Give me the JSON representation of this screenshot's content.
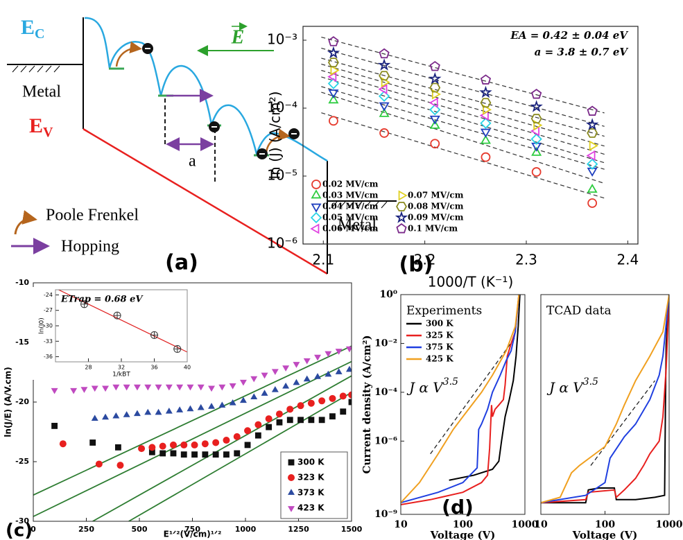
{
  "diagram": {
    "ec": "E",
    "ec_sub": "C",
    "ev": "E",
    "ev_sub": "V",
    "field": "E",
    "metal_left": "Metal",
    "metal_right": "Metal",
    "a": "a",
    "pf": "Poole Frenkel",
    "hop": "Hopping",
    "panel": "(a)"
  },
  "chart_data": [
    {
      "type": "scatter",
      "panel": "(b)",
      "log_scale": "y",
      "xlim": [
        2.08,
        2.41
      ],
      "ylim": [
        1e-06,
        0.0016
      ],
      "xticks": [
        2.1,
        2.2,
        2.3,
        2.4
      ],
      "yticks": [
        {
          "value": 1e-06,
          "label": "10⁻⁶"
        },
        {
          "value": 1e-05,
          "label": "10⁻⁵"
        },
        {
          "value": 0.0001,
          "label": "10⁻⁴"
        },
        {
          "value": 0.001,
          "label": "10⁻³"
        }
      ],
      "xlabel": "1000/T (K⁻¹)",
      "ylabel": "ln (J) (A/cm²)",
      "annotations": [
        "EA = 0.42 ± 0.04 eV",
        "a = 3.8 ± 0.7 eV"
      ],
      "fit": "dashed",
      "open_markers": true,
      "legend": "lower left",
      "legend_columns": 2,
      "x": [
        2.11,
        2.16,
        2.21,
        2.26,
        2.31,
        2.365
      ],
      "series": [
        {
          "name": "0.02 MV/cm",
          "color": "#e63b2e",
          "marker": "circle",
          "values": [
            6.5e-05,
            4.3e-05,
            3e-05,
            1.9e-05,
            1.15e-05,
            4e-06
          ]
        },
        {
          "name": "0.03 MV/cm",
          "color": "#2ecc40",
          "marker": "triangle-up",
          "values": [
            0.00013,
            8.2e-05,
            5.5e-05,
            3.3e-05,
            2.2e-05,
            6.3e-06
          ]
        },
        {
          "name": "0.04 MV/cm",
          "color": "#1f3fbf",
          "marker": "triangle-down",
          "values": [
            0.00017,
            0.00011,
            7e-05,
            4.5e-05,
            2.8e-05,
            1.2e-05
          ]
        },
        {
          "name": "0.05 MV/cm",
          "color": "#29d3e6",
          "marker": "diamond",
          "values": [
            0.00023,
            0.00015,
            9.5e-05,
            6e-05,
            3.5e-05,
            1.5e-05
          ]
        },
        {
          "name": "0.06 MV/cm",
          "color": "#e040e0",
          "marker": "triangle-left",
          "values": [
            0.00029,
            0.00019,
            0.00012,
            7.8e-05,
            4.6e-05,
            2e-05
          ]
        },
        {
          "name": "0.07 MV/cm",
          "color": "#e0d020",
          "marker": "triangle-right",
          "values": [
            0.00036,
            0.00024,
            0.00016,
            9.5e-05,
            5.6e-05,
            2.8e-05
          ]
        },
        {
          "name": "0.08 MV/cm",
          "color": "#8a8a1f",
          "marker": "hexagon",
          "values": [
            0.00047,
            0.0003,
            0.0002,
            0.00012,
            7e-05,
            4.3e-05
          ]
        },
        {
          "name": "0.09 MV/cm",
          "color": "#1a237e",
          "marker": "star",
          "values": [
            0.00065,
            0.00043,
            0.00027,
            0.00017,
            0.000105,
            5.7e-05
          ]
        },
        {
          "name": "0.1 MV/cm",
          "color": "#7b2a8a",
          "marker": "pentagon",
          "values": [
            0.00095,
            0.00063,
            0.00041,
            0.00026,
            0.00016,
            9e-05
          ]
        }
      ]
    },
    {
      "type": "scatter",
      "panel": "(c)",
      "xlim": [
        0,
        1500
      ],
      "ylim": [
        -30,
        -10
      ],
      "xticks": [
        0,
        250,
        500,
        750,
        1000,
        1250,
        1500
      ],
      "yticks": [
        -30,
        -25,
        -20,
        -15,
        -10
      ],
      "xlabel": "E¹ᐟ²(V/cm)¹ᐟ²",
      "ylabel": "ln(J/E) (A/V.cm)",
      "legend": "lower right",
      "series": [
        {
          "name": "300 K",
          "color": "#111111",
          "marker": "square",
          "x": [
            100,
            280,
            400,
            560,
            610,
            660,
            710,
            760,
            810,
            860,
            910,
            960,
            1010,
            1060,
            1110,
            1160,
            1210,
            1260,
            1310,
            1360,
            1410,
            1460,
            1500
          ],
          "values": [
            -22,
            -23.4,
            -23.8,
            -24.2,
            -24.3,
            -24.3,
            -24.4,
            -24.4,
            -24.4,
            -24.4,
            -24.4,
            -24.3,
            -23.6,
            -22.8,
            -22.1,
            -21.7,
            -21.5,
            -21.5,
            -21.5,
            -21.5,
            -21.2,
            -20.8,
            -20
          ]
        },
        {
          "name": "323 K",
          "color": "#e8201f",
          "marker": "circle",
          "x": [
            140,
            310,
            410,
            510,
            560,
            610,
            660,
            710,
            760,
            810,
            860,
            910,
            960,
            1010,
            1060,
            1110,
            1160,
            1210,
            1260,
            1310,
            1360,
            1410,
            1460,
            1500
          ],
          "values": [
            -23.5,
            -25.2,
            -25.3,
            -23.9,
            -23.8,
            -23.7,
            -23.6,
            -23.6,
            -23.6,
            -23.5,
            -23.4,
            -23.2,
            -22.9,
            -22.4,
            -21.9,
            -21.4,
            -21,
            -20.6,
            -20.3,
            -20.1,
            -19.9,
            -19.7,
            -19.5,
            -19.4
          ]
        },
        {
          "name": "373 K",
          "color": "#2b4aa0",
          "marker": "triangle-up",
          "x": [
            290,
            340,
            390,
            440,
            490,
            540,
            590,
            640,
            690,
            740,
            790,
            840,
            890,
            940,
            990,
            1040,
            1090,
            1140,
            1190,
            1240,
            1290,
            1340,
            1390,
            1440,
            1490
          ],
          "values": [
            -21.4,
            -21.3,
            -21.2,
            -21.1,
            -21,
            -20.9,
            -20.9,
            -20.8,
            -20.7,
            -20.6,
            -20.5,
            -20.4,
            -20.3,
            -20.1,
            -19.9,
            -19.6,
            -19.3,
            -19,
            -18.7,
            -18.4,
            -18.1,
            -17.9,
            -17.7,
            -17.5,
            -17.3
          ]
        },
        {
          "name": "423 K",
          "color": "#c04ac0",
          "marker": "triangle-down",
          "x": [
            0,
            100,
            190,
            240,
            290,
            340,
            390,
            440,
            490,
            540,
            590,
            640,
            690,
            740,
            790,
            840,
            890,
            940,
            990,
            1040,
            1090,
            1140,
            1190,
            1240,
            1290,
            1340,
            1390,
            1440,
            1490
          ],
          "values": [
            -17.9,
            -19,
            -19,
            -18.9,
            -18.8,
            -18.8,
            -18.7,
            -18.7,
            -18.7,
            -18.7,
            -18.7,
            -18.7,
            -18.7,
            -18.7,
            -18.7,
            -18.8,
            -18.7,
            -18.6,
            -18.3,
            -18,
            -17.7,
            -17.4,
            -17.1,
            -16.8,
            -16.5,
            -16.2,
            -15.9,
            -15.7,
            -15.5
          ]
        }
      ],
      "fits": [
        {
          "color": "#2e7d32",
          "x": [
            0,
            1500
          ],
          "values": [
            -27.8,
            -15.3
          ]
        },
        {
          "color": "#2e7d32",
          "x": [
            0,
            1500
          ],
          "values": [
            -29.6,
            -16.6
          ]
        },
        {
          "color": "#2e7d32",
          "x": [
            280,
            1500
          ],
          "values": [
            -30,
            -17.8
          ]
        },
        {
          "color": "#2e7d32",
          "x": [
            450,
            1500
          ],
          "values": [
            -30,
            -19.2
          ]
        }
      ]
    },
    {
      "type": "scatter",
      "title": "ETrap = 0.68 eV",
      "xlim": [
        24,
        40
      ],
      "ylim": [
        -37,
        -23
      ],
      "xticks": [
        28,
        32,
        36,
        40
      ],
      "yticks": [
        -24,
        -27,
        -30,
        -33,
        -36
      ],
      "xlabel": "1/kBT",
      "ylabel": "ln(J0)",
      "fit": "solid",
      "fit_color": "#e02020",
      "series": [
        {
          "color": "#333333",
          "marker": "circle-plus",
          "x": [
            27.5,
            31.5,
            36,
            38.8
          ],
          "values": [
            -25.8,
            -28,
            -31.8,
            -34.5
          ]
        }
      ]
    },
    {
      "type": "line",
      "panel": "(d)",
      "log_scale": "xy",
      "xlim": [
        10,
        1000
      ],
      "ylim": [
        1e-09,
        1
      ],
      "xticks": [
        10,
        100,
        1000
      ],
      "yticks": [
        {
          "value": 1e-09,
          "label": "10⁻⁹"
        },
        {
          "value": 1e-06,
          "label": "10⁻⁶"
        },
        {
          "value": 0.0001,
          "label": "10⁻⁴"
        },
        {
          "value": 0.01,
          "label": "10⁻²"
        },
        {
          "value": 1,
          "label": "10⁰"
        }
      ],
      "xlabel": "Voltage (V)",
      "ylabel": "Current density (A/cm²)",
      "title": "Experiments",
      "formula": "J α V",
      "formula_exp": "3.5",
      "legend": "upper left",
      "series": [
        {
          "name": "300 K",
          "color": "#000000",
          "x": [
            60,
            150,
            300,
            380,
            420,
            480,
            560,
            650,
            720,
            780,
            830
          ],
          "values": [
            2.5e-08,
            4e-08,
            7e-08,
            1.5e-07,
            1e-06,
            1e-05,
            5e-05,
            0.0003,
            0.003,
            0.05,
            1
          ]
        },
        {
          "name": "325 K",
          "color": "#e8201f",
          "x": [
            10,
            30,
            100,
            200,
            250,
            270,
            290,
            300,
            330,
            380,
            450,
            480,
            520,
            600,
            700,
            800
          ],
          "values": [
            2.5e-09,
            4e-09,
            8e-09,
            2e-08,
            4e-08,
            5e-07,
            3e-05,
            1e-05,
            2e-05,
            3e-05,
            5e-05,
            0.0002,
            0.003,
            0.01,
            0.03,
            1
          ]
        },
        {
          "name": "375 K",
          "color": "#1f3fe0",
          "x": [
            10,
            40,
            100,
            170,
            180,
            200,
            250,
            300,
            400,
            500,
            600,
            700,
            800
          ],
          "values": [
            3e-09,
            8e-09,
            2e-08,
            8e-08,
            3e-06,
            5e-06,
            2e-05,
            0.0001,
            0.0005,
            0.002,
            0.005,
            0.03,
            1
          ]
        },
        {
          "name": "425 K",
          "color": "#f0a020",
          "x": [
            10,
            20,
            40,
            70,
            100,
            200,
            300,
            500,
            700,
            800
          ],
          "values": [
            3e-09,
            2e-08,
            3e-07,
            3e-06,
            1e-05,
            0.0001,
            0.0005,
            0.005,
            0.05,
            1
          ]
        }
      ],
      "fits": [
        {
          "color": "#222222",
          "dashed": true,
          "x": [
            30,
            700
          ],
          "values": [
            3e-07,
            0.018
          ]
        }
      ]
    },
    {
      "type": "line",
      "log_scale": "xy",
      "xlim": [
        10,
        1000
      ],
      "ylim": [
        1e-09,
        1
      ],
      "xticks": [
        10,
        100,
        1000
      ],
      "xlabel": "Voltage (V)",
      "title": "TCAD data",
      "formula": "J α V",
      "formula_exp": "3.5",
      "series": [
        {
          "color": "#000000",
          "x": [
            10,
            40,
            50,
            55,
            80,
            140,
            150,
            300,
            600,
            850,
            880,
            900,
            1000
          ],
          "values": [
            3e-09,
            3e-09,
            3e-09,
            1e-08,
            1.2e-08,
            1.2e-08,
            4e-09,
            4e-09,
            5e-09,
            6e-09,
            0.0001,
            0.01,
            1
          ]
        },
        {
          "color": "#e8201f",
          "x": [
            10,
            50,
            55,
            140,
            150,
            200,
            300,
            400,
            500,
            700,
            800,
            900,
            1000
          ],
          "values": [
            3e-09,
            4e-09,
            8e-09,
            1e-08,
            5e-09,
            1e-08,
            3e-08,
            1e-07,
            3e-07,
            1e-06,
            1e-05,
            0.001,
            1
          ]
        },
        {
          "color": "#1f3fe0",
          "x": [
            10,
            50,
            100,
            120,
            200,
            300,
            500,
            700,
            800,
            1000
          ],
          "values": [
            3e-09,
            6e-09,
            2e-08,
            2e-07,
            1.5e-06,
            5e-06,
            5e-05,
            0.0005,
            0.003,
            1
          ]
        },
        {
          "color": "#f0a020",
          "x": [
            10,
            20,
            30,
            40,
            70,
            100,
            150,
            200,
            300,
            500,
            800,
            1000
          ],
          "values": [
            3e-09,
            5e-09,
            5e-08,
            1e-07,
            3e-07,
            6e-07,
            5e-06,
            3e-05,
            0.0003,
            0.003,
            0.03,
            1
          ]
        }
      ],
      "fits": [
        {
          "color": "#222222",
          "dashed": true,
          "x": [
            60,
            600
          ],
          "values": [
            1e-07,
            0.0003
          ]
        }
      ]
    }
  ]
}
